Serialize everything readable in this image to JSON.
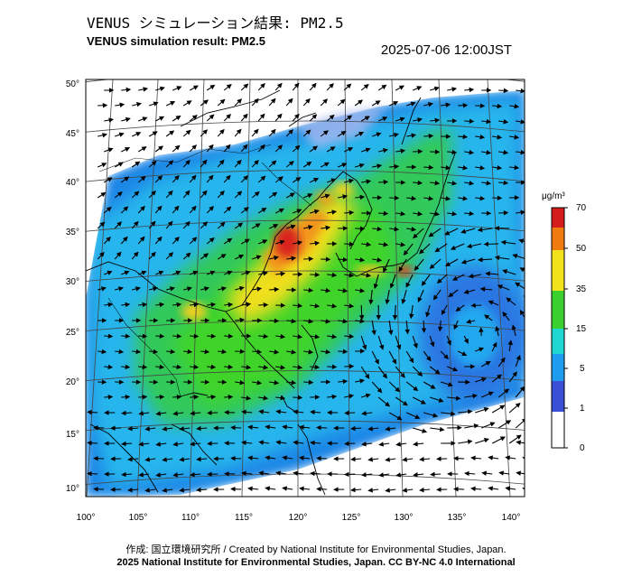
{
  "header": {
    "title_jp": "VENUS シミュレーション結果: PM2.5",
    "title_en": "VENUS simulation result: PM2.5",
    "datetime": "2025-07-06 12:00JST"
  },
  "map": {
    "lon_ticks": [
      "100°",
      "105°",
      "110°",
      "115°",
      "120°",
      "125°",
      "130°",
      "135°",
      "140°"
    ],
    "lat_ticks": [
      "10°",
      "15°",
      "20°",
      "25°",
      "30°",
      "35°",
      "40°",
      "45°",
      "50°"
    ]
  },
  "colorbar": {
    "unit": "μg/m³",
    "ticks": [
      "0",
      "1",
      "5",
      "15",
      "35",
      "50",
      "70"
    ],
    "colors": [
      "#ffffff",
      "#3a4fd6",
      "#1e9cf0",
      "#20d6d0",
      "#3ad12e",
      "#f2e21c",
      "#f07a10",
      "#d41c1c"
    ]
  },
  "footer": {
    "credit_jp": "作成: 国立環境研究所 / Created by National Institute for Environmental Studies, Japan.",
    "copyright": "2025 National Institute for Environmental Studies, Japan. CC BY-NC 4.0 International"
  }
}
